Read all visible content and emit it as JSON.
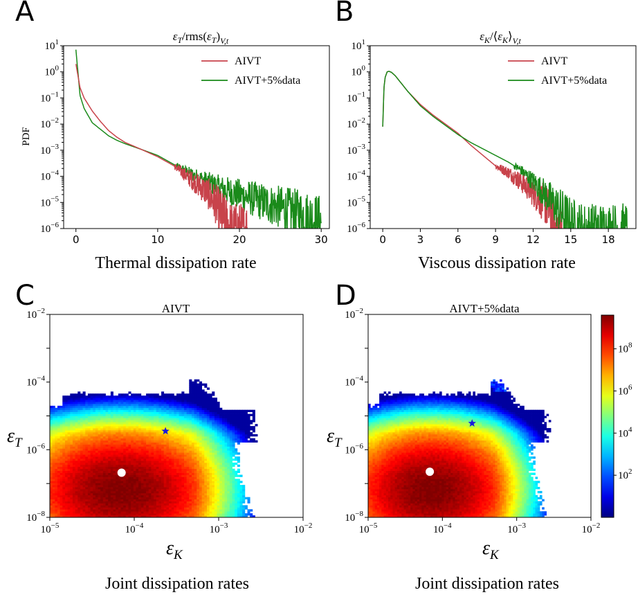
{
  "panels": [
    "A",
    "B",
    "C",
    "D"
  ],
  "captions": {
    "A": "Thermal dissipation rate",
    "B": "Viscous dissipation rate",
    "C": "Joint dissipation rates",
    "D": "Joint dissipation rates"
  },
  "colors": {
    "aivt": "#c8434b",
    "aivt_data": "#1a8a1a",
    "star": "#1a1adc",
    "dot": "#ffffff"
  },
  "colorbar": {
    "log10_min": 0,
    "log10_max": 9.6,
    "ticks": [
      "10^2",
      "10^4",
      "10^6",
      "10^8"
    ],
    "colormap": "jet"
  },
  "chart_data": [
    {
      "type": "line",
      "title": "εT/rms(εT)V,t",
      "xlabel": "",
      "ylabel": "PDF",
      "xlim": [
        -1.5,
        31
      ],
      "xticks": [
        0,
        10,
        20,
        30
      ],
      "ylim_log10": [
        -6,
        1
      ],
      "yscale": "log",
      "legend": "top-right",
      "series": [
        {
          "name": "AIVT",
          "x": [
            0,
            0.5,
            1,
            2,
            3,
            4,
            5,
            6,
            8,
            10,
            12,
            14,
            16,
            17,
            18,
            19,
            21
          ],
          "log10_y": [
            0.3,
            -0.6,
            -1,
            -1.5,
            -1.9,
            -2.25,
            -2.5,
            -2.7,
            -2.97,
            -3.25,
            -3.6,
            -4.1,
            -4.6,
            -5,
            -5.6,
            -6,
            -6
          ]
        },
        {
          "name": "AIVT+5%data",
          "x": [
            0,
            0.5,
            1,
            2,
            3,
            4,
            5,
            6,
            8,
            10,
            12,
            14,
            16,
            18,
            20,
            22,
            24,
            26,
            28,
            30
          ],
          "log10_y": [
            0.85,
            -0.9,
            -1.4,
            -1.95,
            -2.2,
            -2.45,
            -2.62,
            -2.75,
            -2.97,
            -3.2,
            -3.55,
            -3.9,
            -4.2,
            -4.5,
            -4.7,
            -4.9,
            -5.1,
            -5.3,
            -5.5,
            -5.7
          ]
        }
      ]
    },
    {
      "type": "line",
      "title": "εK/⟨εK⟩V,t",
      "xlabel": "",
      "ylabel": "",
      "xlim": [
        -1,
        20.2
      ],
      "xticks": [
        0,
        3,
        6,
        9,
        12,
        15,
        18
      ],
      "ylim_log10": [
        -6,
        1
      ],
      "yscale": "log",
      "legend": "top-right",
      "series": [
        {
          "name": "AIVT",
          "x": [
            0,
            0.1,
            0.2,
            0.35,
            0.5,
            0.7,
            1,
            1.5,
            2,
            3,
            4,
            5,
            6,
            7,
            8,
            9,
            10,
            11,
            12,
            13,
            13.5,
            14,
            14.3
          ],
          "log10_y": [
            -2.1,
            -0.6,
            -0.2,
            0,
            0.02,
            -0.02,
            -0.15,
            -0.45,
            -0.75,
            -1.25,
            -1.65,
            -2,
            -2.35,
            -2.8,
            -3.2,
            -3.6,
            -3.85,
            -4.2,
            -4.6,
            -5.1,
            -5.5,
            -6,
            -6
          ]
        },
        {
          "name": "AIVT+5%data",
          "x": [
            0,
            0.1,
            0.2,
            0.35,
            0.5,
            0.7,
            1,
            1.5,
            2,
            3,
            4,
            5,
            6,
            7,
            8,
            9,
            10,
            11,
            12,
            13,
            14,
            15,
            16,
            17,
            18,
            19.5
          ],
          "log10_y": [
            -2.1,
            -0.6,
            -0.2,
            0,
            0.02,
            -0.02,
            -0.15,
            -0.45,
            -0.75,
            -1.3,
            -1.7,
            -2.05,
            -2.4,
            -2.7,
            -2.95,
            -3.2,
            -3.45,
            -3.75,
            -4.2,
            -4.7,
            -5.25,
            -5.8,
            -6,
            -6,
            -6,
            -6
          ]
        }
      ]
    },
    {
      "type": "heatmap",
      "title": "AIVT",
      "xlabel": "εK",
      "ylabel": "εT",
      "xlim_log10": [
        -5,
        -2
      ],
      "ylim_log10": [
        -8,
        -2
      ],
      "peak": {
        "log10_x": -4.15,
        "log10_y": -7.2
      },
      "star": {
        "log10_x": -3.63,
        "log10_y": -5.45
      },
      "dot": {
        "log10_x": -4.15,
        "log10_y": -6.68
      }
    },
    {
      "type": "heatmap",
      "title": "AIVT+5%data",
      "xlabel": "εK",
      "ylabel": "εT",
      "xlim_log10": [
        -5,
        -2
      ],
      "ylim_log10": [
        -8,
        -2
      ],
      "peak": {
        "log10_x": -4.15,
        "log10_y": -7.2
      },
      "star": {
        "log10_x": -3.6,
        "log10_y": -5.22
      },
      "dot": {
        "log10_x": -4.17,
        "log10_y": -6.65
      }
    }
  ]
}
